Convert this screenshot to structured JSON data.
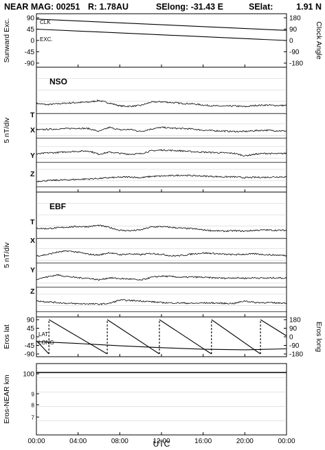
{
  "header": {
    "title": "NEAR MAG: 00251",
    "range": "R: 1.78AU",
    "selong": "SElong:  -31.43 E",
    "selat": "SElat:",
    "selat_value": "1.91 N"
  },
  "chart_data": [
    {
      "type": "line",
      "panel": "orientation",
      "ylabel": "Sunward Exc.",
      "ylabel_right": "Clock Angle",
      "ylim": [
        -90,
        90
      ],
      "yticks": [
        "90",
        "45",
        "0",
        "-45",
        "-90"
      ],
      "yticks_right": [
        "180",
        "90",
        "0",
        "-90",
        "-180"
      ],
      "series": [
        {
          "name": "CLK",
          "x": [
            0,
            24
          ],
          "y": [
            85,
            40
          ]
        },
        {
          "name": "EXC.",
          "x": [
            0,
            24
          ],
          "y": [
            45,
            0
          ]
        }
      ]
    },
    {
      "type": "line",
      "panel": "magnetic field",
      "title": "NSO",
      "ylabel": "5 nT/div",
      "series": [
        {
          "name": "T",
          "x": [
            0,
            1,
            2,
            3,
            4,
            5,
            6,
            7,
            8,
            9,
            10,
            11,
            12,
            13,
            14,
            15,
            16,
            17,
            18,
            19,
            20,
            21,
            22,
            23,
            24
          ],
          "y": [
            2.5,
            2.2,
            2.4,
            2.6,
            2.7,
            2.8,
            3.2,
            2.6,
            1.9,
            1.8,
            2.0,
            2.8,
            2.9,
            2.7,
            2.5,
            2.4,
            2.1,
            1.9,
            1.8,
            1.9,
            1.7,
            2.0,
            2.1,
            2.0,
            2.0
          ]
        },
        {
          "name": "X",
          "x": [
            0,
            1,
            2,
            3,
            4,
            5,
            6,
            7,
            8,
            9,
            10,
            11,
            12,
            13,
            14,
            15,
            16,
            17,
            18,
            19,
            20,
            21,
            22,
            23,
            24
          ],
          "y": [
            2.0,
            2.1,
            2.2,
            2.3,
            2.4,
            2.3,
            1.6,
            2.6,
            2.0,
            2.1,
            1.6,
            2.2,
            2.6,
            2.4,
            2.3,
            2.2,
            1.9,
            1.8,
            1.7,
            1.6,
            1.6,
            1.8,
            1.9,
            1.8,
            1.7
          ]
        },
        {
          "name": "Y",
          "x": [
            0,
            1,
            2,
            3,
            4,
            5,
            6,
            7,
            8,
            9,
            10,
            11,
            12,
            13,
            14,
            15,
            16,
            17,
            18,
            19,
            20,
            21,
            22,
            23,
            24
          ],
          "y": [
            2.0,
            2.3,
            2.4,
            2.6,
            2.7,
            2.8,
            2.0,
            2.5,
            2.2,
            2.0,
            2.1,
            2.8,
            3.0,
            2.9,
            2.8,
            2.6,
            2.5,
            2.4,
            2.3,
            2.2,
            1.6,
            2.0,
            2.2,
            2.1,
            2.2
          ]
        },
        {
          "name": "Z",
          "x": [
            0,
            1,
            2,
            3,
            4,
            5,
            6,
            7,
            8,
            9,
            10,
            11,
            12,
            13,
            14,
            15,
            16,
            17,
            18,
            19,
            20,
            21,
            22,
            23,
            24
          ],
          "y": [
            1.3,
            1.5,
            1.6,
            1.7,
            1.8,
            1.9,
            2.0,
            2.2,
            2.3,
            2.4,
            2.2,
            2.5,
            2.6,
            2.7,
            2.8,
            2.7,
            2.6,
            2.5,
            2.4,
            2.4,
            2.2,
            2.3,
            2.3,
            2.4,
            2.4
          ]
        }
      ]
    },
    {
      "type": "line",
      "panel": "magnetic field",
      "title": "EBF",
      "ylabel": "5 nT/div",
      "series": [
        {
          "name": "T",
          "x": [
            0,
            1,
            2,
            3,
            4,
            5,
            6,
            7,
            8,
            9,
            10,
            11,
            12,
            13,
            14,
            15,
            16,
            17,
            18,
            19,
            20,
            21,
            22,
            23,
            24
          ],
          "y": [
            2.5,
            2.4,
            2.6,
            2.8,
            2.9,
            2.9,
            3.2,
            2.7,
            2.0,
            1.9,
            2.1,
            2.8,
            2.9,
            2.7,
            2.5,
            2.4,
            2.1,
            1.9,
            1.8,
            1.9,
            1.8,
            2.0,
            2.1,
            2.0,
            2.0
          ]
        },
        {
          "name": "X",
          "x": [
            0,
            1,
            2,
            3,
            4,
            5,
            6,
            7,
            8,
            9,
            10,
            11,
            12,
            13,
            14,
            15,
            16,
            17,
            18,
            19,
            20,
            21,
            22,
            23,
            24
          ],
          "y": [
            1.7,
            2.0,
            2.6,
            2.9,
            2.6,
            2.1,
            1.9,
            2.5,
            2.0,
            2.2,
            2.0,
            2.3,
            2.1,
            1.7,
            1.8,
            2.2,
            2.4,
            2.3,
            2.1,
            2.0,
            2.1,
            2.2,
            2.0,
            1.9,
            1.8
          ]
        },
        {
          "name": "Y",
          "x": [
            0,
            1,
            2,
            3,
            4,
            5,
            6,
            7,
            8,
            9,
            10,
            11,
            12,
            13,
            14,
            15,
            16,
            17,
            18,
            19,
            20,
            21,
            22,
            23,
            24
          ],
          "y": [
            2.0,
            2.5,
            3.0,
            2.6,
            2.3,
            2.2,
            1.8,
            2.3,
            2.1,
            2.0,
            1.7,
            2.4,
            2.7,
            2.6,
            2.4,
            2.5,
            2.4,
            2.3,
            2.2,
            2.3,
            2.2,
            2.3,
            2.2,
            2.3,
            2.2
          ]
        },
        {
          "name": "Z",
          "x": [
            0,
            1,
            2,
            3,
            4,
            5,
            6,
            7,
            8,
            9,
            10,
            11,
            12,
            13,
            14,
            15,
            16,
            17,
            18,
            19,
            20,
            21,
            22,
            23,
            24
          ],
          "y": [
            2.6,
            2.4,
            2.2,
            2.0,
            1.9,
            1.9,
            1.8,
            2.0,
            2.8,
            2.7,
            2.6,
            2.4,
            2.2,
            2.1,
            2.1,
            2.0,
            2.1,
            2.1,
            2.0,
            2.0,
            2.6,
            2.2,
            2.2,
            2.1,
            2.1
          ]
        }
      ]
    },
    {
      "type": "line",
      "panel": "eros position",
      "ylabel": "Eros lat",
      "ylabel_right": "Eros long",
      "ylim": [
        -90,
        90
      ],
      "yticks": [
        "90",
        "45",
        "0",
        "-45",
        "-90"
      ],
      "yticks_right": [
        "180",
        "90",
        "0",
        "-90",
        "-180"
      ],
      "series": [
        {
          "name": "LAT",
          "x": [
            0,
            4,
            8,
            12,
            16,
            20,
            24
          ],
          "y": [
            -25,
            -35,
            -47,
            -57,
            -65,
            -68,
            -63
          ]
        },
        {
          "name": "LONG",
          "x": [
            0,
            1.2,
            1.2,
            6.8,
            6.8,
            11.8,
            11.8,
            16.8,
            16.8,
            21.5,
            21.5,
            24
          ],
          "y": [
            -20,
            -90,
            90,
            -90,
            90,
            -90,
            90,
            -90,
            90,
            -90,
            90,
            5
          ]
        }
      ]
    },
    {
      "type": "line",
      "panel": "distance",
      "ylabel": "Eros-NEAR km",
      "ylim": [
        7,
        140
      ],
      "yticks": [
        "100",
        "9",
        "8",
        "7"
      ],
      "series": [
        {
          "name": "distance",
          "x": [
            0,
            24
          ],
          "y": [
            103,
            103
          ]
        }
      ]
    }
  ],
  "xaxis": {
    "label": "UTC",
    "ticks": [
      "00:00",
      "04:00",
      "08:00",
      "12:00",
      "16:00",
      "20:00",
      "00:00"
    ]
  },
  "colors": {
    "line": "#000000",
    "grid": "#c8c8c8",
    "background": "#ffffff"
  }
}
